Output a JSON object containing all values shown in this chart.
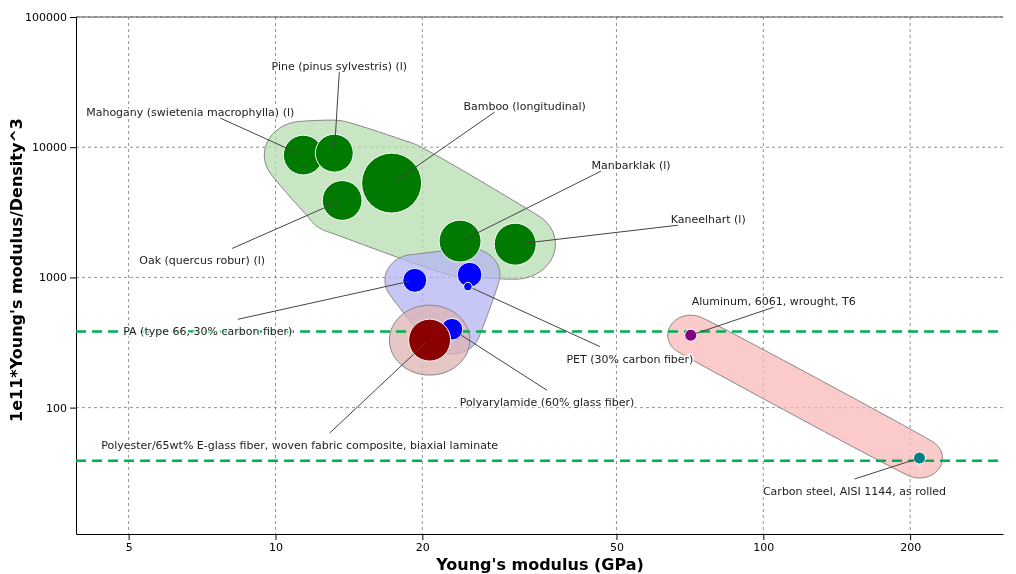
{
  "chart_data": {
    "type": "bubble",
    "xlabel": "Young's modulus (GPa)",
    "ylabel": "1e11*Young's modulus/Density^3",
    "log": "xy",
    "xlim": [
      3.9,
      310
    ],
    "ylim": [
      10.7,
      100000
    ],
    "xticks": [
      5,
      10,
      20,
      50,
      100,
      200
    ],
    "yticks": [
      100,
      1000,
      10000,
      100000
    ],
    "grid": true,
    "series": [
      {
        "color": "#007a00",
        "x": [
          11.4,
          13.2,
          17.3,
          13.7,
          23.9,
          31.0
        ],
        "values": [
          8700,
          9000,
          5300,
          3900,
          1900,
          1800
        ],
        "sizes": [
          0.44,
          0.4,
          1,
          0.44,
          0.49,
          0.49
        ]
      },
      {
        "color": "#0000ff",
        "x": [
          19.3,
          25.0,
          24.8,
          23.0
        ],
        "values": [
          950,
          1050,
          850,
          400
        ],
        "sizes": [
          0.16,
          0.17,
          0.02,
          0.13
        ]
      },
      {
        "color": "#8b0000",
        "x": [
          20.7
        ],
        "values": [
          330
        ],
        "sizes": [
          0.49
        ]
      },
      {
        "colors": [
          "#800080",
          "#008080"
        ],
        "x": [
          71,
          209
        ],
        "values": [
          360,
          41
        ],
        "sizes": [
          0.04,
          0.04
        ]
      }
    ],
    "ref_lines": [
      {
        "axis": "y",
        "value": 385,
        "color": "#00b050",
        "line_style": "dashed"
      },
      {
        "axis": "y",
        "value": 39,
        "color": "#00b050",
        "line_style": "dashed"
      }
    ],
    "annotations": [
      {
        "text": "Mahogany (swietenia macrophylla) (l)",
        "x": 11.4,
        "y": 8700
      },
      {
        "text": "Pine (pinus sylvestris) (l)",
        "x": 13.2,
        "y": 9000
      },
      {
        "text": "Bamboo (longitudinal)",
        "x": 17.3,
        "y": 5300
      },
      {
        "text": "Manbarklak (l)",
        "x": 23.9,
        "y": 1900
      },
      {
        "text": "Kaneelhart (l)",
        "x": 31.0,
        "y": 1800
      },
      {
        "text": "Oak (quercus robur) (l)",
        "x": 13.7,
        "y": 3900
      },
      {
        "text": "PA (type 66, 30% carbon fiber)",
        "x": 19.3,
        "y": 950
      },
      {
        "text": "PET (30% carbon fiber)",
        "x": 24.8,
        "y": 850
      },
      {
        "text": "Polyarylamide (60% glass fiber)",
        "x": 23.0,
        "y": 400
      },
      {
        "text": "Polyester/65wt% E-glass fiber, woven fabric composite, biaxial laminate",
        "x": 20.7,
        "y": 330
      },
      {
        "text": "Aluminum, 6061, wrought, T6",
        "x": 71,
        "y": 360
      },
      {
        "text": "Carbon steel, AISI 1144, as rolled",
        "x": 209,
        "y": 41
      }
    ]
  }
}
